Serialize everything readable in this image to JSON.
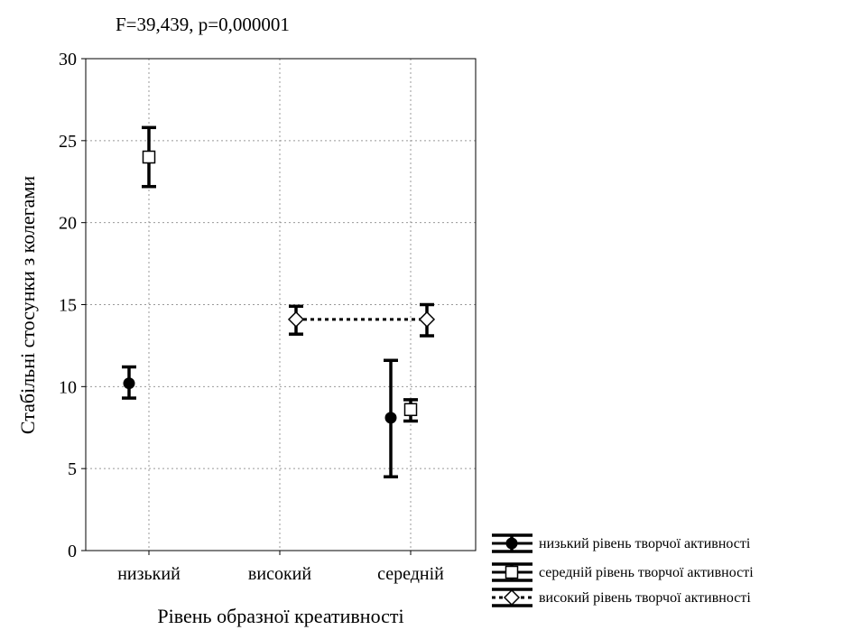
{
  "chart_data": {
    "type": "scatter",
    "title": "F=39,439, p=0,000001",
    "xlabel": "Рівень образної креативності",
    "ylabel": "Стабільні стосунки з колегами",
    "categories": [
      "низький",
      "високий",
      "середній"
    ],
    "ylim": [
      0,
      30
    ],
    "yticks": [
      0,
      5,
      10,
      15,
      20,
      25,
      30
    ],
    "grid": true,
    "legend_position": "bottom-right",
    "series": [
      {
        "name": "низький рівень творчої активності",
        "marker": "circle",
        "line": "solid",
        "points": [
          {
            "category": "низький",
            "y": 10.2,
            "low": 9.3,
            "high": 11.2
          },
          {
            "category": "середній",
            "y": 8.1,
            "low": 4.5,
            "high": 11.6
          }
        ]
      },
      {
        "name": "середній рівень творчої активності",
        "marker": "square",
        "line": "solid",
        "points": [
          {
            "category": "низький",
            "y": 24.0,
            "low": 22.2,
            "high": 25.8
          },
          {
            "category": "середній",
            "y": 8.6,
            "low": 7.9,
            "high": 9.2
          }
        ]
      },
      {
        "name": "високий рівень творчої активності",
        "marker": "diamond",
        "line": "dotted",
        "points": [
          {
            "category": "високий",
            "y": 14.1,
            "low": 13.2,
            "high": 14.9
          },
          {
            "category": "середній",
            "y": 14.1,
            "low": 13.1,
            "high": 15.0
          }
        ]
      }
    ]
  }
}
